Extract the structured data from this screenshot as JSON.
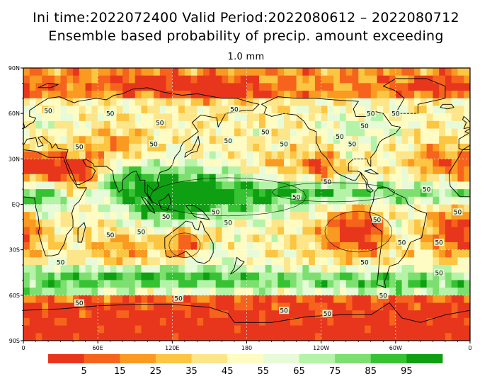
{
  "header": {
    "title_line1": "Ini time:2022072400   Valid Period:2022080612 – 2022080712",
    "title_line2": "Ensemble based probability of precip. amount exceeding",
    "threshold": "1.0 mm"
  },
  "map": {
    "lat_ticks": [
      "90N",
      "60N",
      "30N",
      "EQ",
      "30S",
      "60S",
      "90S"
    ],
    "lon_ticks": [
      "0",
      "60E",
      "120E",
      "180",
      "120W",
      "60W",
      "0"
    ],
    "contour_label": "50",
    "contour_label_count": 34,
    "color_scale": [
      "#e8361c",
      "#f6631c",
      "#fa9a20",
      "#fcc542",
      "#fde58a",
      "#fffcc3",
      "#e7fbd8",
      "#b5f3a8",
      "#7ddf6f",
      "#36c232",
      "#0f9f12"
    ],
    "high_prob_zones": [
      "tropical western pacific",
      "itcz",
      "southern ocean storm track",
      "asian monsoon"
    ],
    "low_prob_zones": [
      "sahara",
      "arabia",
      "antarctica",
      "southeast pacific",
      "south atlantic",
      "australia interior"
    ]
  },
  "legend": {
    "labels": [
      "5",
      "15",
      "25",
      "35",
      "45",
      "55",
      "65",
      "75",
      "85",
      "95"
    ]
  }
}
